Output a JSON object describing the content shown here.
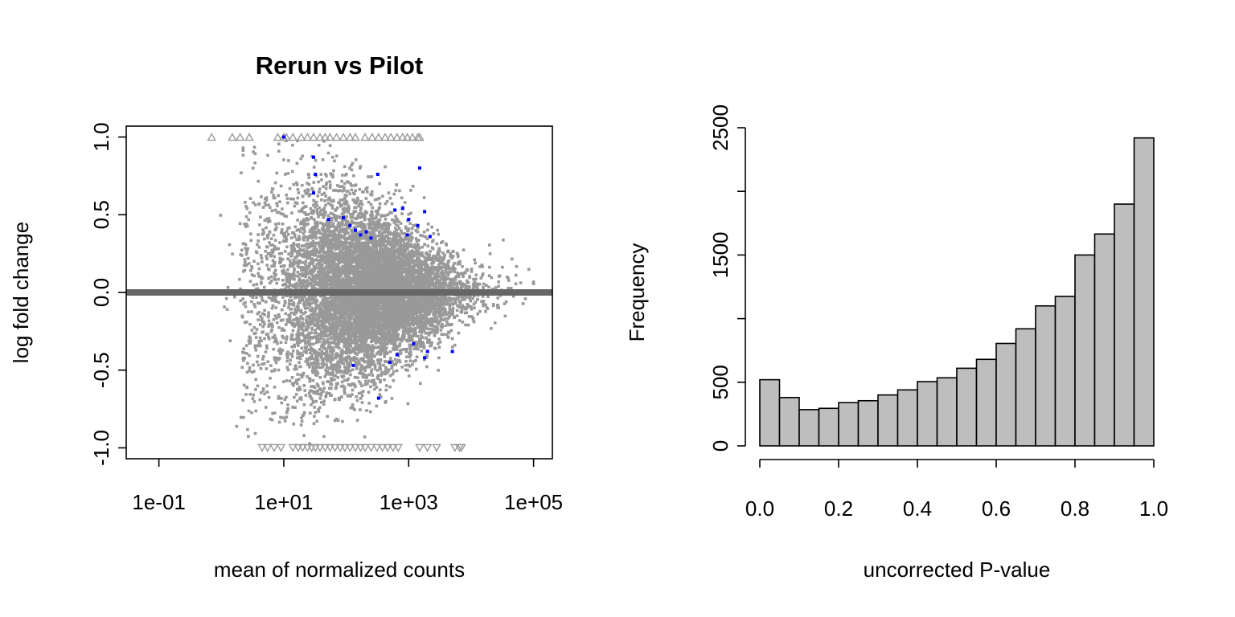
{
  "chart_data": [
    {
      "type": "scatter",
      "title": "Rerun vs Pilot",
      "xlabel": "mean of normalized counts",
      "ylabel": "log fold change",
      "xscale": "log10",
      "xlim": [
        0.03,
        200000
      ],
      "ylim": [
        -1.07,
        1.07
      ],
      "x_ticks": [
        0.1,
        10,
        1000,
        100000
      ],
      "x_tick_labels": [
        "1e-01",
        "1e+01",
        "1e+03",
        "1e+05"
      ],
      "y_ticks": [
        -1.0,
        -0.5,
        0.0,
        0.5,
        1.0
      ],
      "y_tick_labels": [
        "-1.0",
        "-0.5",
        "0.0",
        "0.5",
        "1.0"
      ],
      "reference_line_y": 0.0,
      "colors": {
        "points": "#999999",
        "significant": "#0000ff",
        "clipped": "#999999",
        "reference_line": "#666666"
      },
      "series": [
        {
          "role": "significant",
          "points": [
            [
              10,
              1.0
            ],
            [
              30,
              0.87
            ],
            [
              32,
              0.76
            ],
            [
              30,
              0.64
            ],
            [
              52,
              0.47
            ],
            [
              90,
              0.48
            ],
            [
              115,
              0.43
            ],
            [
              140,
              0.4
            ],
            [
              170,
              0.37
            ],
            [
              210,
              0.39
            ],
            [
              320,
              0.76
            ],
            [
              600,
              0.53
            ],
            [
              1500,
              0.8
            ],
            [
              800,
              0.54
            ],
            [
              1000,
              0.47
            ],
            [
              1400,
              0.43
            ],
            [
              2200,
              0.36
            ],
            [
              950,
              0.37
            ],
            [
              1800,
              0.52
            ],
            [
              250,
              0.35
            ],
            [
              130,
              -0.47
            ],
            [
              500,
              -0.45
            ],
            [
              330,
              -0.68
            ],
            [
              1800,
              -0.42
            ],
            [
              2000,
              -0.38
            ],
            [
              5000,
              -0.38
            ],
            [
              1200,
              -0.33
            ],
            [
              650,
              -0.4
            ]
          ]
        },
        {
          "role": "clipped-above",
          "x_values": [
            0.7,
            1.5,
            2.0,
            2.8,
            8,
            10,
            11,
            14,
            19,
            24,
            30,
            38,
            46,
            55,
            70,
            90,
            115,
            140,
            200,
            260,
            330,
            420,
            520,
            650,
            800,
            950,
            1150,
            1400,
            1500
          ]
        },
        {
          "role": "clipped-below",
          "x_values": [
            4.5,
            5.5,
            7,
            9,
            14,
            17,
            20,
            24,
            28,
            32,
            38,
            46,
            55,
            66,
            80,
            95,
            115,
            140,
            170,
            200,
            250,
            310,
            380,
            460,
            560,
            680,
            1500,
            2000,
            2800,
            5500,
            6500,
            7000
          ]
        },
        {
          "role": "all-genes",
          "n_points": 9000,
          "log10_mean_center": 2.4,
          "log10_mean_sd": 0.7,
          "lfc_sd_at_low_count": 0.45,
          "lfc_sd_at_high_count": 0.1
        }
      ]
    },
    {
      "type": "histogram",
      "xlabel": "uncorrected P-value",
      "ylabel": "Frequency",
      "xlim": [
        0,
        1
      ],
      "ylim": [
        0,
        2500
      ],
      "x_ticks": [
        0,
        0.2,
        0.4,
        0.6,
        0.8,
        1.0
      ],
      "x_tick_labels": [
        "0.0",
        "0.2",
        "0.4",
        "0.6",
        "0.8",
        "1.0"
      ],
      "y_ticks": [
        0,
        500,
        1500,
        2500
      ],
      "y_tick_labels": [
        "0",
        "500",
        "1500",
        "2500"
      ],
      "bin_width": 0.05,
      "bin_starts": [
        0.0,
        0.05,
        0.1,
        0.15,
        0.2,
        0.25,
        0.3,
        0.35,
        0.4,
        0.45,
        0.5,
        0.55,
        0.6,
        0.65,
        0.7,
        0.75,
        0.8,
        0.85,
        0.9,
        0.95
      ],
      "values": [
        520,
        380,
        285,
        295,
        340,
        355,
        400,
        440,
        505,
        535,
        610,
        680,
        805,
        920,
        1100,
        1175,
        1500,
        1665,
        1900,
        2420
      ],
      "colors": {
        "bars": "#bebebe",
        "border": "#000000"
      }
    }
  ]
}
